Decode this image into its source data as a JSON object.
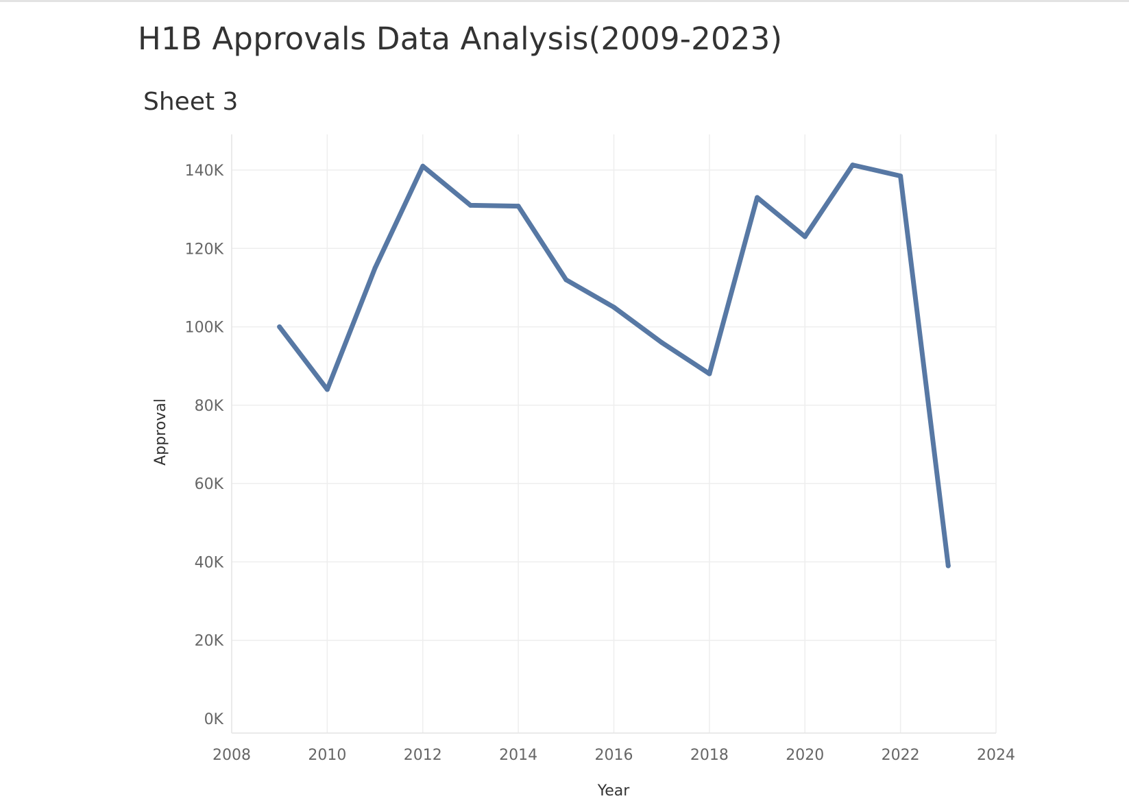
{
  "dashboard": {
    "title": "H1B Approvals Data Analysis(2009-2023)",
    "sheet_title": "Sheet 3"
  },
  "chart_data": {
    "type": "line",
    "xlabel": "Year",
    "ylabel": "Approval",
    "xlim": [
      2008,
      2024
    ],
    "ylim": [
      0,
      150000
    ],
    "x_ticks": [
      2008,
      2010,
      2012,
      2014,
      2016,
      2018,
      2020,
      2022,
      2024
    ],
    "x_tick_labels": [
      "2008",
      "2010",
      "2012",
      "2014",
      "2016",
      "2018",
      "2020",
      "2022",
      "2024"
    ],
    "y_ticks": [
      0,
      20000,
      40000,
      60000,
      80000,
      100000,
      120000,
      140000
    ],
    "y_tick_labels": [
      "0K",
      "20K",
      "40K",
      "60K",
      "80K",
      "100K",
      "120K",
      "140K"
    ],
    "grid": true,
    "series": [
      {
        "color": "#5778a4",
        "x": [
          2009,
          2010,
          2011,
          2012,
          2013,
          2014,
          2015,
          2016,
          2017,
          2018,
          2019,
          2020,
          2021,
          2022,
          2023
        ],
        "values": [
          100000,
          84000,
          115000,
          141000,
          131000,
          130800,
          112000,
          105000,
          96000,
          88000,
          133000,
          123000,
          141300,
          138500,
          39000
        ]
      }
    ]
  }
}
